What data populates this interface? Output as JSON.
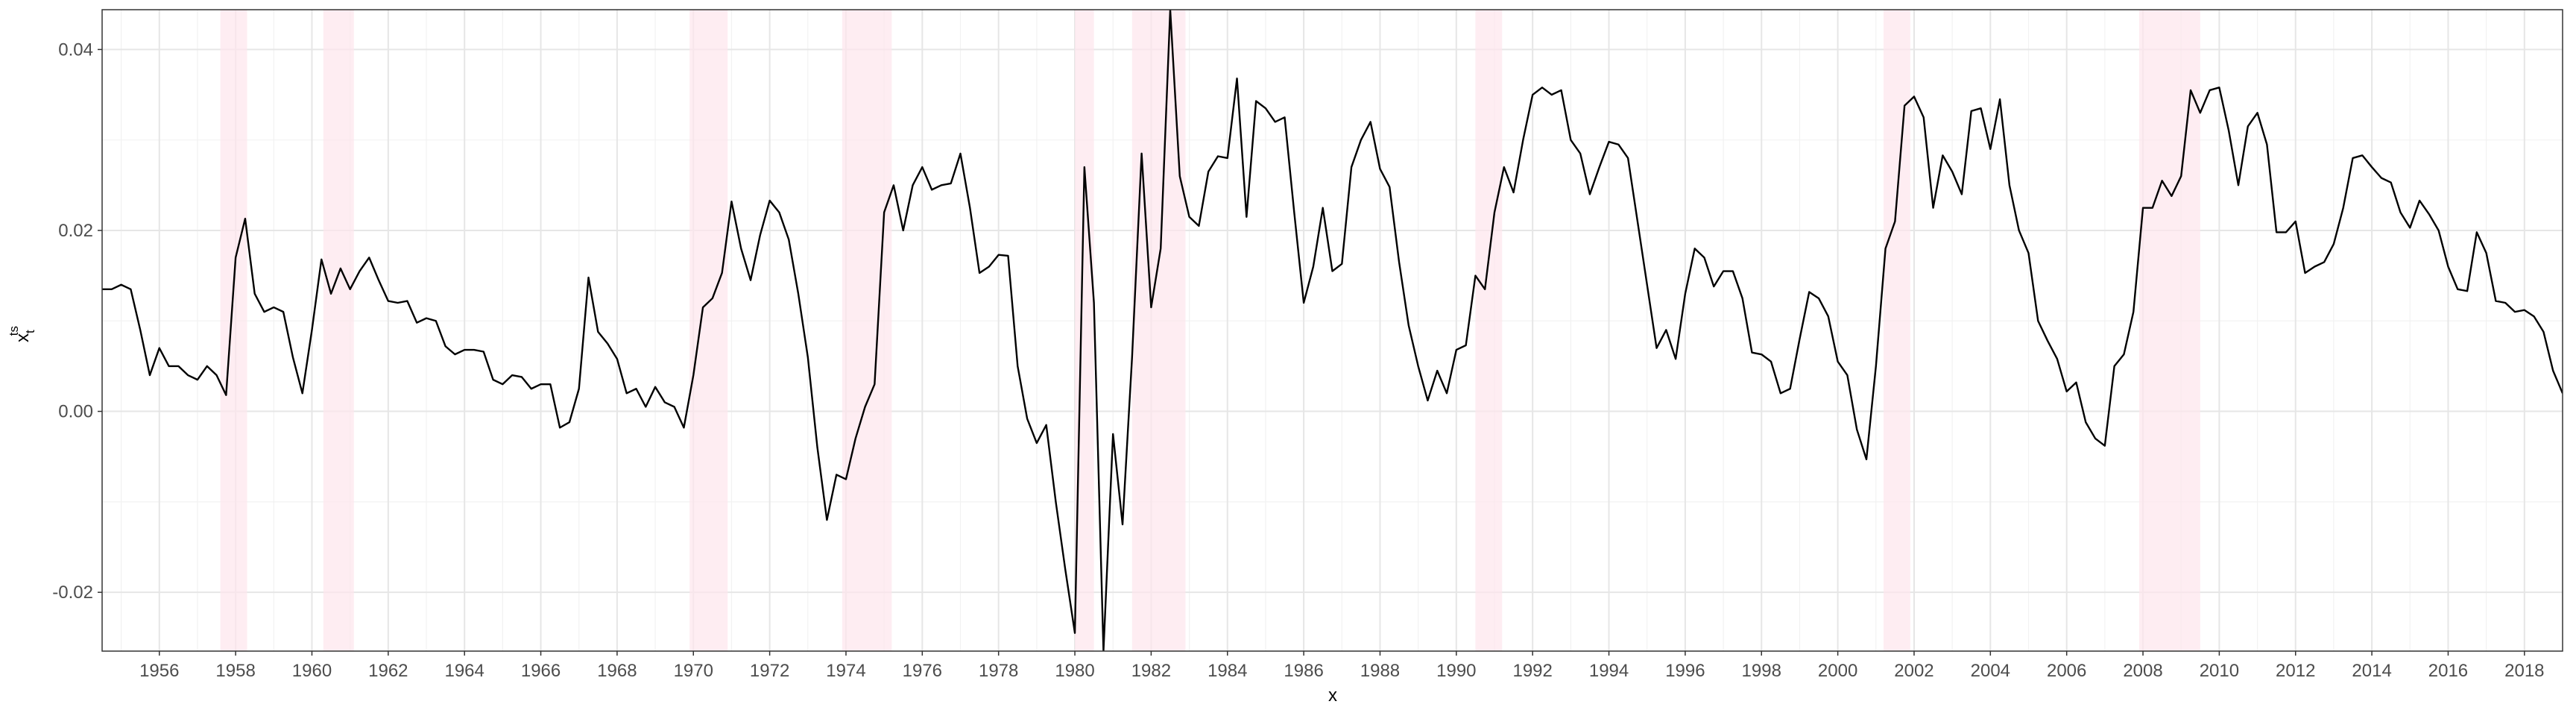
{
  "chart_data": {
    "type": "line",
    "xlabel": "x",
    "ylabel_base": "x",
    "ylabel_sub": "t",
    "ylabel_sup": "ts",
    "xlim": [
      1954.5,
      2019.0
    ],
    "ylim": [
      -0.0265,
      0.0444
    ],
    "xticks": [
      1956,
      1958,
      1960,
      1962,
      1964,
      1966,
      1968,
      1970,
      1972,
      1974,
      1976,
      1978,
      1980,
      1982,
      1984,
      1986,
      1988,
      1990,
      1992,
      1994,
      1996,
      1998,
      2000,
      2002,
      2004,
      2006,
      2008,
      2010,
      2012,
      2014,
      2016,
      2018
    ],
    "xminor": [
      1955,
      1957,
      1959,
      1961,
      1963,
      1965,
      1967,
      1969,
      1971,
      1973,
      1975,
      1977,
      1979,
      1981,
      1983,
      1985,
      1987,
      1989,
      1991,
      1993,
      1995,
      1997,
      1999,
      2001,
      2003,
      2005,
      2007,
      2009,
      2011,
      2013,
      2015,
      2017
    ],
    "yticks": [
      -0.02,
      {
        "value": 0,
        "label": "0.00"
      },
      0.02,
      0.04
    ],
    "yminor": [
      -0.01,
      0.01,
      0.03
    ],
    "grid": true,
    "shade_color": "#fde6ec",
    "shaded": [
      [
        1957.6,
        1958.3
      ],
      [
        1960.3,
        1961.1
      ],
      [
        1969.9,
        1970.9
      ],
      [
        1973.9,
        1975.2
      ],
      [
        1980.0,
        1980.5
      ],
      [
        1981.5,
        1982.9
      ],
      [
        1990.5,
        1991.2
      ],
      [
        2001.2,
        2001.9
      ],
      [
        2007.9,
        2009.5
      ]
    ],
    "x": [
      1954.5,
      1954.75,
      1955,
      1955.25,
      1955.5,
      1955.75,
      1956,
      1956.25,
      1956.5,
      1956.75,
      1957,
      1957.25,
      1957.5,
      1957.75,
      1958,
      1958.25,
      1958.5,
      1958.75,
      1959,
      1959.25,
      1959.5,
      1959.75,
      1960,
      1960.25,
      1960.5,
      1960.75,
      1961,
      1961.25,
      1961.5,
      1961.75,
      1962,
      1962.25,
      1962.5,
      1962.75,
      1963,
      1963.25,
      1963.5,
      1963.75,
      1964,
      1964.25,
      1964.5,
      1964.75,
      1965,
      1965.25,
      1965.5,
      1965.75,
      1966,
      1966.25,
      1966.5,
      1966.75,
      1967,
      1967.25,
      1967.5,
      1967.75,
      1968,
      1968.25,
      1968.5,
      1968.75,
      1969,
      1969.25,
      1969.5,
      1969.75,
      1970,
      1970.25,
      1970.5,
      1970.75,
      1971,
      1971.25,
      1971.5,
      1971.75,
      1972,
      1972.25,
      1972.5,
      1972.75,
      1973,
      1973.25,
      1973.5,
      1973.75,
      1974,
      1974.25,
      1974.5,
      1974.75,
      1975,
      1975.25,
      1975.5,
      1975.75,
      1976,
      1976.25,
      1976.5,
      1976.75,
      1977,
      1977.25,
      1977.5,
      1977.75,
      1978,
      1978.25,
      1978.5,
      1978.75,
      1979,
      1979.25,
      1979.5,
      1979.75,
      1980,
      1980.25,
      1980.5,
      1980.75,
      1981,
      1981.25,
      1981.5,
      1981.75,
      1982,
      1982.25,
      1982.5,
      1982.75,
      1983,
      1983.25,
      1983.5,
      1983.75,
      1984,
      1984.25,
      1984.5,
      1984.75,
      1985,
      1985.25,
      1985.5,
      1985.75,
      1986,
      1986.25,
      1986.5,
      1986.75,
      1987,
      1987.25,
      1987.5,
      1987.75,
      1988,
      1988.25,
      1988.5,
      1988.75,
      1989,
      1989.25,
      1989.5,
      1989.75,
      1990,
      1990.25,
      1990.5,
      1990.75,
      1991,
      1991.25,
      1991.5,
      1991.75,
      1992,
      1992.25,
      1992.5,
      1992.75,
      1993,
      1993.25,
      1993.5,
      1993.75,
      1994,
      1994.25,
      1994.5,
      1994.75,
      1995,
      1995.25,
      1995.5,
      1995.75,
      1996,
      1996.25,
      1996.5,
      1996.75,
      1997,
      1997.25,
      1997.5,
      1997.75,
      1998,
      1998.25,
      1998.5,
      1998.75,
      1999,
      1999.25,
      1999.5,
      1999.75,
      2000,
      2000.25,
      2000.5,
      2000.75,
      2001,
      2001.25,
      2001.5,
      2001.75,
      2002,
      2002.25,
      2002.5,
      2002.75,
      2003,
      2003.25,
      2003.5,
      2003.75,
      2004,
      2004.25,
      2004.5,
      2004.75,
      2005,
      2005.25,
      2005.5,
      2005.75,
      2006,
      2006.25,
      2006.5,
      2006.75,
      2007,
      2007.25,
      2007.5,
      2007.75,
      2008,
      2008.25,
      2008.5,
      2008.75,
      2009,
      2009.25,
      2009.5,
      2009.75,
      2010,
      2010.25,
      2010.5,
      2010.75,
      2011,
      2011.25,
      2011.5,
      2011.75,
      2012,
      2012.25,
      2012.5,
      2012.75,
      2013,
      2013.25,
      2013.5,
      2013.75,
      2014,
      2014.25,
      2014.5,
      2014.75,
      2015,
      2015.25,
      2015.5,
      2015.75,
      2016,
      2016.25,
      2016.5,
      2016.75,
      2017,
      2017.25,
      2017.5,
      2017.75,
      2018,
      2018.25,
      2018.5,
      2018.75,
      2019
    ],
    "series": [
      {
        "color": "#000000",
        "values": [
          0.0135,
          0.0135,
          0.014,
          0.0135,
          0.009,
          0.004,
          0.007,
          0.005,
          0.005,
          0.004,
          0.0035,
          0.005,
          0.004,
          0.0018,
          0.017,
          0.0213,
          0.013,
          0.011,
          0.0115,
          0.011,
          0.006,
          0.002,
          0.009,
          0.0168,
          0.013,
          0.0158,
          0.0135,
          0.0155,
          0.017,
          0.0145,
          0.0122,
          0.012,
          0.0122,
          0.0098,
          0.0103,
          0.01,
          0.0072,
          0.0063,
          0.0068,
          0.0068,
          0.0066,
          0.0035,
          0.003,
          0.004,
          0.0038,
          0.0025,
          0.003,
          0.003,
          -0.0018,
          -0.0012,
          0.0025,
          0.0148,
          0.0088,
          0.0075,
          0.0058,
          0.002,
          0.0025,
          0.0005,
          0.0027,
          0.001,
          0.0005,
          -0.0018,
          0.004,
          0.0115,
          0.0125,
          0.0153,
          0.0232,
          0.018,
          0.0145,
          0.0195,
          0.0233,
          0.022,
          0.019,
          0.013,
          0.006,
          -0.004,
          -0.012,
          -0.007,
          -0.0075,
          -0.003,
          0.0005,
          0.003,
          0.022,
          0.025,
          0.02,
          0.025,
          0.027,
          0.0245,
          0.025,
          0.0252,
          0.0285,
          0.0225,
          0.0153,
          0.016,
          0.0173,
          0.0172,
          0.005,
          -0.0008,
          -0.0035,
          -0.0015,
          -0.01,
          -0.0175,
          -0.0245,
          0.027,
          0.012,
          -0.0265,
          -0.0025,
          -0.0125,
          0.006,
          0.0285,
          0.0115,
          0.018,
          0.0444,
          0.026,
          0.0215,
          0.0205,
          0.0265,
          0.0282,
          0.028,
          0.0368,
          0.0215,
          0.0343,
          0.0335,
          0.032,
          0.0325,
          0.022,
          0.012,
          0.016,
          0.0225,
          0.0155,
          0.0163,
          0.027,
          0.03,
          0.032,
          0.0268,
          0.0248,
          0.0165,
          0.0095,
          0.005,
          0.0012,
          0.0045,
          0.002,
          0.0068,
          0.0073,
          0.015,
          0.0135,
          0.022,
          0.027,
          0.0242,
          0.03,
          0.035,
          0.0358,
          0.035,
          0.0355,
          0.03,
          0.0285,
          0.024,
          0.027,
          0.0298,
          0.0295,
          0.028,
          0.021,
          0.014,
          0.007,
          0.009,
          0.0058,
          0.013,
          0.018,
          0.017,
          0.0138,
          0.0155,
          0.0155,
          0.0125,
          0.0065,
          0.0063,
          0.0055,
          0.002,
          0.0025,
          0.008,
          0.0132,
          0.0125,
          0.0105,
          0.0055,
          0.004,
          -0.002,
          -0.0053,
          0.005,
          0.018,
          0.021,
          0.0338,
          0.0348,
          0.0325,
          0.0225,
          0.0283,
          0.0265,
          0.024,
          0.0332,
          0.0335,
          0.029,
          0.0345,
          0.025,
          0.02,
          0.0175,
          0.01,
          0.0078,
          0.0058,
          0.0022,
          0.0032,
          -0.0012,
          -0.003,
          -0.0038,
          0.005,
          0.0063,
          0.011,
          0.0225,
          0.0225,
          0.0255,
          0.0238,
          0.026,
          0.0355,
          0.033,
          0.0355,
          0.0358,
          0.031,
          0.025,
          0.0315,
          0.033,
          0.0295,
          0.0198,
          0.0198,
          0.021,
          0.0153,
          0.016,
          0.0165,
          0.0185,
          0.0225,
          0.028,
          0.0283,
          0.027,
          0.0258,
          0.0253,
          0.022,
          0.0203,
          0.0233,
          0.0218,
          0.02,
          0.016,
          0.0135,
          0.0133,
          0.0198,
          0.0175,
          0.0122,
          0.012,
          0.011,
          0.0112,
          0.0105,
          0.0088,
          0.0045,
          0.002
        ]
      }
    ]
  }
}
